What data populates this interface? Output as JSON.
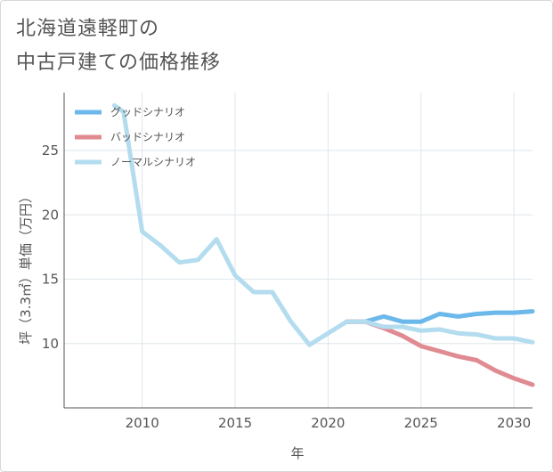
{
  "title_lines": [
    "北海道遠軽町の",
    "中古戸建ての価格推移"
  ],
  "chart_data": {
    "type": "line",
    "xlabel": "年",
    "ylabel": "坪（3.3㎡）単価（万円）",
    "xlim": [
      2005.8,
      2031
    ],
    "ylim": [
      5,
      29.5
    ],
    "xticks": [
      2010,
      2015,
      2020,
      2025,
      2030
    ],
    "yticks": [
      10,
      15,
      20,
      25
    ],
    "grid": true,
    "legend_position": "top-left",
    "series": [
      {
        "name": "グッドシナリオ",
        "color": "#6cb8ea",
        "x": [
          2021,
          2022,
          2023,
          2024,
          2025,
          2026,
          2027,
          2028,
          2029,
          2030,
          2031
        ],
        "y": [
          11.7,
          11.7,
          12.1,
          11.7,
          11.7,
          12.3,
          12.1,
          12.3,
          12.4,
          12.4,
          12.5
        ]
      },
      {
        "name": "バッドシナリオ",
        "color": "#e08a91",
        "x": [
          2021,
          2022,
          2023,
          2024,
          2025,
          2026,
          2027,
          2028,
          2029,
          2030,
          2031
        ],
        "y": [
          11.7,
          11.7,
          11.2,
          10.6,
          9.8,
          9.4,
          9.0,
          8.7,
          7.9,
          7.3,
          6.8
        ]
      },
      {
        "name": "ノーマルシナリオ",
        "color": "#b4dcef",
        "x": [
          2008.5,
          2009,
          2010,
          2011,
          2012,
          2013,
          2014,
          2015,
          2016,
          2017,
          2018,
          2019,
          2020,
          2021,
          2022,
          2023,
          2024,
          2025,
          2026,
          2027,
          2028,
          2029,
          2030,
          2031
        ],
        "y": [
          28.5,
          28.0,
          18.7,
          17.6,
          16.3,
          16.5,
          18.1,
          15.3,
          14.0,
          14.0,
          11.7,
          9.9,
          10.8,
          11.7,
          11.7,
          11.3,
          11.3,
          11.0,
          11.1,
          10.8,
          10.7,
          10.4,
          10.4,
          10.1
        ]
      }
    ]
  }
}
